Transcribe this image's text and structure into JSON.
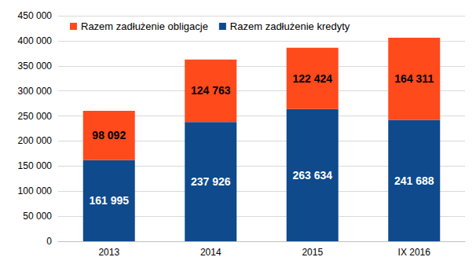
{
  "chart_data": {
    "type": "bar",
    "stacked": true,
    "data_labels": true,
    "grid": true,
    "legend": "upper left",
    "categories": [
      "2013",
      "2014",
      "2015",
      "IX 2016"
    ],
    "series": [
      {
        "name": "Razem zadłużenie kredyty",
        "color": "#0E4A8C",
        "values": [
          161995,
          237926,
          263634,
          241688
        ],
        "value_labels": [
          "161 995",
          "237 926",
          "263 634",
          "241 688"
        ]
      },
      {
        "name": "Razem zadłużenie obligacje",
        "color": "#FF4A1C",
        "values": [
          98092,
          124763,
          122424,
          164311
        ],
        "value_labels": [
          "98 092",
          "124 763",
          "122 424",
          "164 311"
        ]
      }
    ],
    "ylim": [
      0,
      450000
    ],
    "yticks": [
      0,
      {
        "value": 50000,
        "label": "50 000"
      },
      {
        "value": 100000,
        "label": "100 000"
      },
      {
        "value": 150000,
        "label": "150 000"
      },
      {
        "value": 200000,
        "label": "200 000"
      },
      {
        "value": 250000,
        "label": "250 000"
      },
      {
        "value": 300000,
        "label": "300 000"
      },
      {
        "value": 350000,
        "label": "350 000"
      },
      {
        "value": 400000,
        "label": "400 000"
      },
      {
        "value": 450000,
        "label": "450 000"
      }
    ]
  }
}
